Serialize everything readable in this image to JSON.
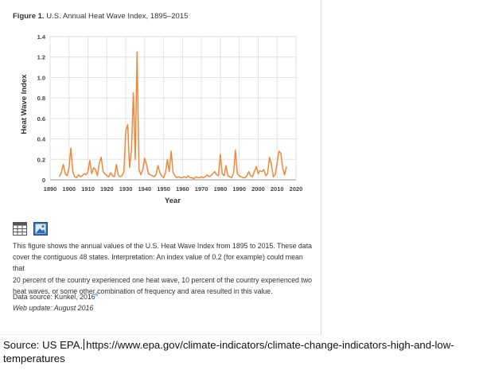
{
  "figure": {
    "number_label": "Figure 1.",
    "title": "U.S. Annual Heat Wave Index, 1895–2015"
  },
  "chart_data": {
    "type": "line",
    "xlabel": "Year",
    "ylabel": "Heat Wave Index",
    "xlim": [
      1890,
      2020
    ],
    "ylim": [
      0,
      1.4
    ],
    "xticks": [
      1890,
      1900,
      1910,
      1920,
      1930,
      1940,
      1950,
      1960,
      1970,
      1980,
      1990,
      2000,
      2010,
      2020
    ],
    "yticks": [
      "0",
      "0.2",
      "0.4",
      "0.6",
      "0.8",
      "1.0",
      "1.2",
      "1.4"
    ],
    "grid": true,
    "line_color": "#f0883a",
    "series": [
      {
        "x": [
          1895,
          1896,
          1897,
          1898,
          1899,
          1900,
          1901,
          1902,
          1903,
          1904,
          1905,
          1906,
          1907,
          1908,
          1909,
          1910,
          1911,
          1912,
          1913,
          1914,
          1915,
          1916,
          1917,
          1918,
          1919,
          1920,
          1921,
          1922,
          1923,
          1924,
          1925,
          1926,
          1927,
          1928,
          1929,
          1930,
          1931,
          1932,
          1933,
          1934,
          1935,
          1936,
          1937,
          1938,
          1939,
          1940,
          1941,
          1942,
          1943,
          1944,
          1945,
          1946,
          1947,
          1948,
          1949,
          1950,
          1951,
          1952,
          1953,
          1954,
          1955,
          1956,
          1957,
          1958,
          1959,
          1960,
          1961,
          1962,
          1963,
          1964,
          1965,
          1966,
          1967,
          1968,
          1969,
          1970,
          1971,
          1972,
          1973,
          1974,
          1975,
          1976,
          1977,
          1978,
          1979,
          1980,
          1981,
          1982,
          1983,
          1984,
          1985,
          1986,
          1987,
          1988,
          1989,
          1990,
          1991,
          1992,
          1993,
          1994,
          1995,
          1996,
          1997,
          1998,
          1999,
          2000,
          2001,
          2002,
          2003,
          2004,
          2005,
          2006,
          2007,
          2008,
          2009,
          2010,
          2011,
          2012,
          2013,
          2014,
          2015
        ],
        "y": [
          0.03,
          0.08,
          0.15,
          0.06,
          0.04,
          0.12,
          0.31,
          0.08,
          0.03,
          0.02,
          0.05,
          0.03,
          0.04,
          0.06,
          0.05,
          0.08,
          0.19,
          0.06,
          0.12,
          0.1,
          0.04,
          0.16,
          0.22,
          0.08,
          0.06,
          0.04,
          0.03,
          0.07,
          0.04,
          0.03,
          0.15,
          0.05,
          0.03,
          0.04,
          0.08,
          0.48,
          0.54,
          0.12,
          0.28,
          0.85,
          0.2,
          1.25,
          0.1,
          0.05,
          0.1,
          0.21,
          0.15,
          0.06,
          0.05,
          0.04,
          0.03,
          0.05,
          0.14,
          0.07,
          0.04,
          0.02,
          0.07,
          0.2,
          0.08,
          0.28,
          0.07,
          0.04,
          0.02,
          0.03,
          0.02,
          0.02,
          0.03,
          0.02,
          0.04,
          0.02,
          0.02,
          0.01,
          0.03,
          0.02,
          0.02,
          0.03,
          0.02,
          0.03,
          0.05,
          0.03,
          0.04,
          0.06,
          0.08,
          0.05,
          0.04,
          0.25,
          0.06,
          0.04,
          0.14,
          0.04,
          0.03,
          0.02,
          0.07,
          0.29,
          0.06,
          0.04,
          0.03,
          0.02,
          0.02,
          0.04,
          0.08,
          0.04,
          0.03,
          0.08,
          0.13,
          0.06,
          0.09,
          0.08,
          0.1,
          0.04,
          0.06,
          0.22,
          0.15,
          0.03,
          0.05,
          0.16,
          0.28,
          0.26,
          0.11,
          0.05,
          0.13
        ]
      }
    ]
  },
  "toolbar": {
    "data_table_icon": "table-icon",
    "image_icon": "image-icon"
  },
  "caption": {
    "line1": "This figure shows the annual values of the U.S. Heat Wave Index from 1895 to 2015. These data",
    "line2": "cover the contiguous 48 states. Interpretation: An index value of 0.2 (for example) could mean that",
    "line3": "20 percent of the country experienced one heat wave, 10 percent of the country experienced two",
    "line4": "heat waves, or some other combination of frequency and area resulted in this value."
  },
  "data_source": {
    "label": "Data source: Kunkel, 2016",
    "ref": "6"
  },
  "web_update": "Web update: August 2016",
  "source_note": {
    "prefix": "Source: US EPA.",
    "url": "https://www.epa.gov/climate-indicators/climate-change-indicators-high-and-low-temperatures"
  }
}
